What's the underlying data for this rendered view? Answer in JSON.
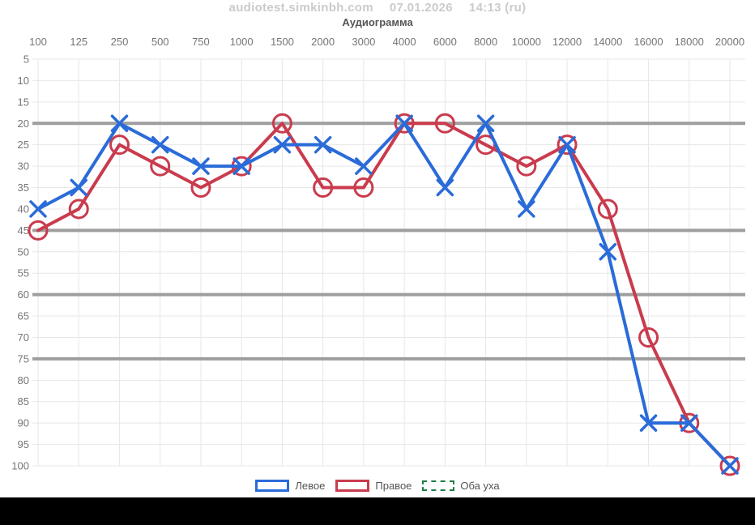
{
  "header": {
    "site": "audiotest.simkinbh.com",
    "date": "07.01.2026",
    "time": "14:13 (ru)"
  },
  "chart_data": {
    "type": "line",
    "title": "Аудиограмма",
    "x_axis_position": "top",
    "categories": [
      "100",
      "125",
      "250",
      "500",
      "750",
      "1000",
      "1500",
      "2000",
      "3000",
      "4000",
      "6000",
      "8000",
      "10000",
      "12000",
      "14000",
      "16000",
      "18000",
      "20000"
    ],
    "series": [
      {
        "name": "Левое",
        "color": "#2a6bd9",
        "marker": "x",
        "values": [
          40,
          35,
          20,
          25,
          30,
          30,
          25,
          25,
          30,
          20,
          35,
          20,
          40,
          25,
          50,
          90,
          90,
          100
        ]
      },
      {
        "name": "Правое",
        "color": "#c93b4d",
        "marker": "circle",
        "values": [
          45,
          40,
          25,
          30,
          35,
          30,
          20,
          35,
          35,
          20,
          20,
          25,
          30,
          25,
          40,
          70,
          90,
          100
        ]
      },
      {
        "name": "Оба уха",
        "color": "#1e7e45",
        "marker": "dashed-box",
        "values": []
      }
    ],
    "y_axis": {
      "min": 5,
      "max": 100,
      "step": 5,
      "inverted": true,
      "emphasized_gridlines": [
        20,
        45,
        60,
        75
      ]
    },
    "grid": true,
    "legend_position": "bottom"
  },
  "legend": {
    "items": [
      {
        "label": "Левое",
        "color": "#2a6bd9",
        "style": "solid"
      },
      {
        "label": "Правое",
        "color": "#c93b4d",
        "style": "solid"
      },
      {
        "label": "Оба уха",
        "color": "#1e7e45",
        "style": "dashed"
      }
    ]
  },
  "colors": {
    "grid_light": "#e7e7e7",
    "grid_emphasis": "#9e9e9e",
    "axis_label": "#757575",
    "header_text": "#cbcbcb",
    "title_text": "#555555",
    "bottom_bar": "#000000"
  }
}
